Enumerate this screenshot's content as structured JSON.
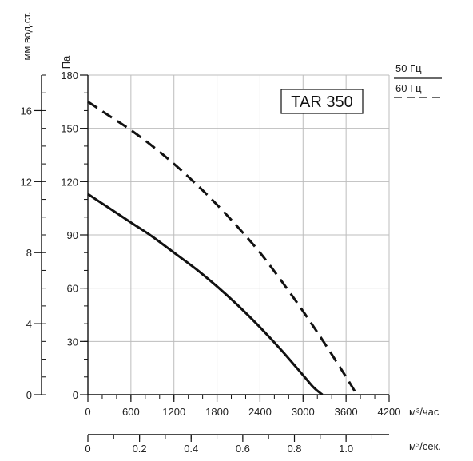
{
  "chart_data": {
    "type": "line",
    "title": "TAR 350",
    "x_unit": "м³/час",
    "x_ticks": [
      "0",
      "600",
      "1200",
      "1800",
      "2400",
      "3000",
      "3600",
      "4200"
    ],
    "xlim": [
      0,
      4200
    ],
    "y_unit": "Па",
    "y_ticks": [
      "0",
      "30",
      "60",
      "90",
      "120",
      "150",
      "180"
    ],
    "ylim": [
      0,
      180
    ],
    "y2_unit": "мм вод.ст.",
    "y2_ticks": [
      "0",
      "4",
      "8",
      "12",
      "16"
    ],
    "y2lim": [
      0,
      18
    ],
    "x2_unit": "м³/сек.",
    "x2_ticks": [
      "0",
      "0.2",
      "0.4",
      "0.6",
      "0.8",
      "1.0"
    ],
    "x2lim": [
      0,
      1.1667
    ],
    "grid": true,
    "legend": [
      {
        "label": "50 Гц",
        "style": "solid"
      },
      {
        "label": "60 Гц",
        "style": "dashed"
      }
    ],
    "series": [
      {
        "name": "50 Гц",
        "style": "solid",
        "x": [
          0,
          300,
          600,
          900,
          1200,
          1500,
          1800,
          2100,
          2400,
          2700,
          3000,
          3150,
          3270
        ],
        "y": [
          113,
          105,
          97,
          89,
          80,
          71,
          61,
          50,
          38,
          25,
          11,
          4,
          0
        ]
      },
      {
        "name": "60 Гц",
        "style": "dashed",
        "x": [
          0,
          300,
          600,
          900,
          1200,
          1500,
          1800,
          2100,
          2400,
          2700,
          3000,
          3300,
          3600,
          3750
        ],
        "y": [
          165,
          157,
          149,
          140,
          130,
          119,
          107,
          94,
          80,
          64,
          47,
          29,
          10,
          0
        ]
      }
    ]
  }
}
